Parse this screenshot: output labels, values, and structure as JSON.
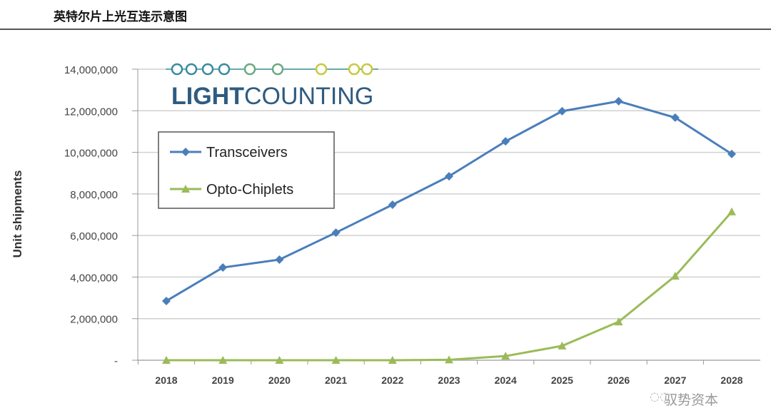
{
  "header": {
    "title": "英特尔片上光互连示意图"
  },
  "watermark": "驭势资本",
  "logo": {
    "text_bold": "LIGHT",
    "text_regular": "COUNTING"
  },
  "chart_data": {
    "type": "line",
    "title": "",
    "xlabel": "",
    "ylabel": "Unit shipments",
    "x": [
      2018,
      2019,
      2020,
      2021,
      2022,
      2023,
      2024,
      2025,
      2026,
      2027,
      2028
    ],
    "ylim": [
      0,
      14000000
    ],
    "yticks": [
      0,
      2000000,
      4000000,
      6000000,
      8000000,
      10000000,
      12000000,
      14000000
    ],
    "ytick_labels": [
      "-",
      "2,000,000",
      "4,000,000",
      "6,000,000",
      "8,000,000",
      "10,000,000",
      "12,000,000",
      "14,000,000"
    ],
    "grid": true,
    "legend": "upper-left",
    "series": [
      {
        "name": "Transceivers",
        "color": "#4a7ebb",
        "marker": "diamond",
        "values": [
          2850000,
          4460000,
          4840000,
          6140000,
          7480000,
          8850000,
          10530000,
          11980000,
          12460000,
          11670000,
          9920000
        ]
      },
      {
        "name": "Opto-Chiplets",
        "color": "#9bbb59",
        "marker": "triangle",
        "values": [
          0,
          0,
          0,
          0,
          0,
          20000,
          200000,
          690000,
          1850000,
          4050000,
          7140000
        ]
      }
    ]
  }
}
